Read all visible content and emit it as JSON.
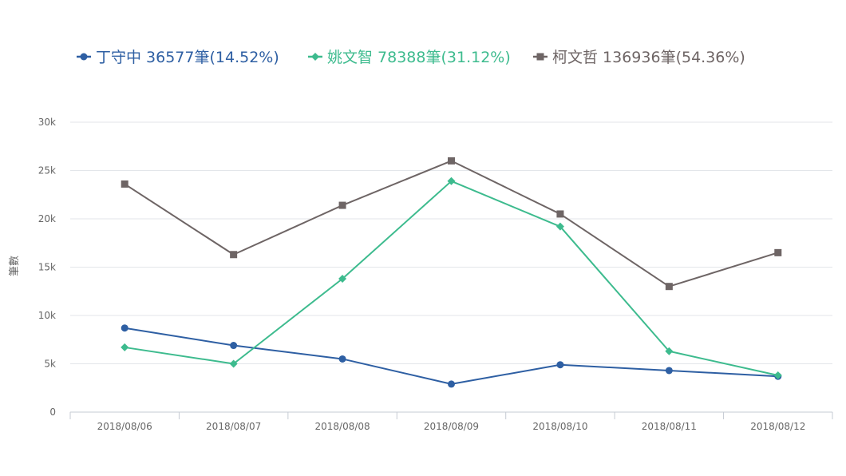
{
  "chart_data": {
    "type": "line",
    "title": "",
    "xlabel": "",
    "ylabel": "筆數",
    "categories": [
      "2018/08/06",
      "2018/08/07",
      "2018/08/08",
      "2018/08/09",
      "2018/08/10",
      "2018/08/11",
      "2018/08/12"
    ],
    "ylim": [
      0,
      30000
    ],
    "yticks": [
      "0",
      "5k",
      "10k",
      "15k",
      "20k",
      "25k",
      "30k"
    ],
    "ytick_values": [
      0,
      5000,
      10000,
      15000,
      20000,
      25000,
      30000
    ],
    "grid": true,
    "legend_position": "top-left",
    "series": [
      {
        "name": "丁守中 36577筆(14.52%)",
        "color": "#2e5fa3",
        "marker": "circle",
        "values": [
          8700,
          6900,
          5500,
          2900,
          4900,
          4300,
          3700
        ]
      },
      {
        "name": "姚文智 78388筆(31.12%)",
        "color": "#3dbb8e",
        "marker": "diamond",
        "values": [
          6700,
          5000,
          13800,
          23900,
          19200,
          6300,
          3800
        ]
      },
      {
        "name": "柯文哲 136936筆(54.36%)",
        "color": "#6e6565",
        "marker": "square",
        "values": [
          23600,
          16300,
          21400,
          26000,
          20500,
          13000,
          16500
        ]
      }
    ]
  }
}
